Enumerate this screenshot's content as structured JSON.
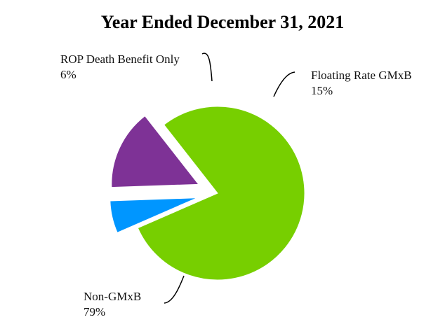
{
  "chart_data": {
    "type": "pie",
    "title": "Year Ended December 31, 2021",
    "slices": [
      {
        "label": "Non-GMxB",
        "value": 79,
        "value_label": "79%",
        "color": "#77CF00",
        "exploded": false
      },
      {
        "label": "ROP Death Benefit Only",
        "value": 6,
        "value_label": "6%",
        "color": "#0096FF",
        "exploded": true
      },
      {
        "label": "Floating Rate GMxB",
        "value": 15,
        "value_label": "15%",
        "color": "#7E3296",
        "exploded": true
      }
    ]
  }
}
